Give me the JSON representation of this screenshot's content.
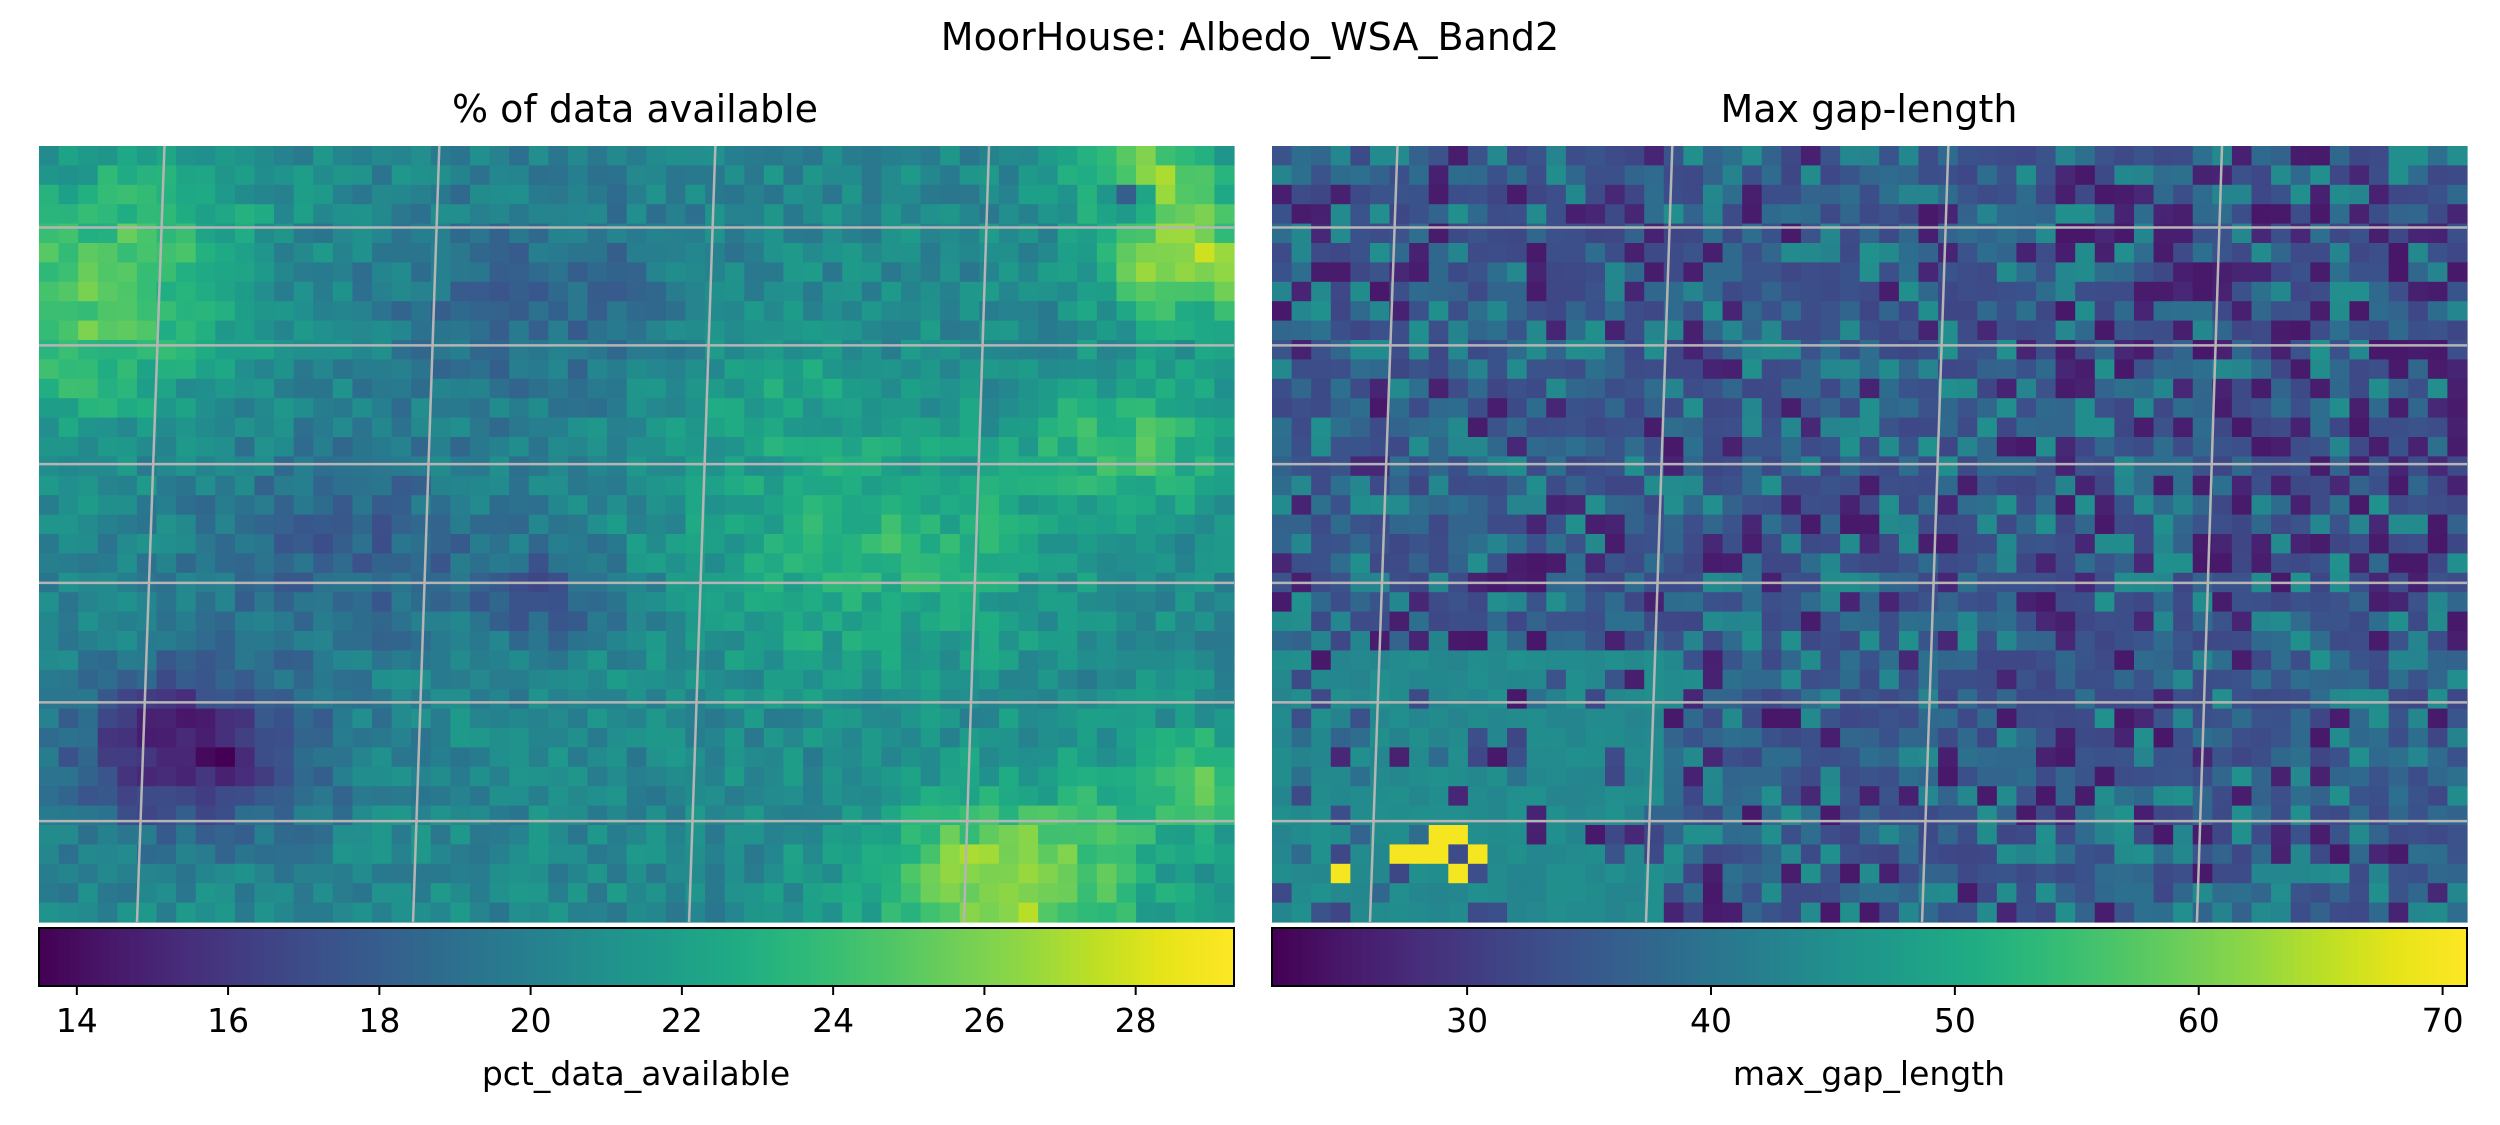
{
  "figure_title": "MoorHouse: Albedo_WSA_Band2",
  "chart_data": [
    {
      "type": "heatmap",
      "title": "% of data available",
      "grid_rows": 40,
      "grid_cols": 61,
      "graticule": true,
      "colormap": "viridis",
      "colorbar": {
        "label": "pct_data_available",
        "range": [
          13.5,
          29.3
        ],
        "ticks": [
          "14",
          "16",
          "18",
          "20",
          "22",
          "24",
          "26",
          "28"
        ],
        "tick_values": [
          14,
          16,
          18,
          20,
          22,
          24,
          26,
          28
        ],
        "location": "bottom"
      },
      "field": {
        "base": 20.5,
        "features": [
          {
            "x": 0.13,
            "y": 0.78,
            "s": 0.07,
            "v": -6.5
          },
          {
            "x": 0.26,
            "y": 0.52,
            "s": 0.09,
            "v": -2.5
          },
          {
            "x": 0.43,
            "y": 0.58,
            "s": 0.04,
            "v": -3.0
          },
          {
            "x": 0.42,
            "y": 0.2,
            "s": 0.1,
            "v": -2.0
          },
          {
            "x": 0.72,
            "y": 0.52,
            "s": 0.08,
            "v": -1.5
          },
          {
            "x": 0.02,
            "y": 0.22,
            "s": 0.09,
            "v": 4.5
          },
          {
            "x": 0.1,
            "y": 0.08,
            "s": 0.06,
            "v": 2.5
          },
          {
            "x": 0.71,
            "y": 0.52,
            "s": 0.1,
            "v": 4.5
          },
          {
            "x": 0.81,
            "y": 0.95,
            "s": 0.08,
            "v": 6.5
          },
          {
            "x": 0.97,
            "y": 0.82,
            "s": 0.05,
            "v": 4.0
          },
          {
            "x": 0.92,
            "y": 0.38,
            "s": 0.06,
            "v": 3.5
          },
          {
            "x": 0.96,
            "y": 0.15,
            "s": 0.05,
            "v": 6.5
          },
          {
            "x": 0.93,
            "y": 0.04,
            "s": 0.04,
            "v": 6.0
          },
          {
            "x": 0.91,
            "y": 0.07,
            "s": 0.015,
            "v": -8.0
          },
          {
            "x": 0.6,
            "y": 0.3,
            "s": 0.07,
            "v": 1.5
          }
        ],
        "noise": 1.2,
        "seed": 17
      }
    },
    {
      "type": "heatmap",
      "title": "Max gap-length",
      "grid_rows": 40,
      "grid_cols": 61,
      "graticule": true,
      "colormap": "viridis",
      "colorbar": {
        "label": "max_gap_length",
        "range": [
          22,
          71
        ],
        "ticks": [
          "30",
          "40",
          "50",
          "60",
          "70"
        ],
        "tick_values": [
          30,
          40,
          50,
          60,
          70
        ],
        "location": "bottom"
      },
      "field": {
        "levels": [
          26,
          33,
          38,
          44
        ],
        "weights": [
          0.12,
          0.45,
          0.25,
          0.18
        ],
        "bottom_left_level": 44,
        "outliers_value": 70,
        "outliers": [
          [
            8,
            70
          ],
          [
            9,
            69
          ],
          [
            10,
            71
          ],
          [
            6,
            72
          ],
          [
            7,
            72
          ],
          [
            8,
            72
          ],
          [
            3,
            73
          ],
          [
            9,
            73
          ]
        ],
        "seed": 29
      }
    }
  ]
}
